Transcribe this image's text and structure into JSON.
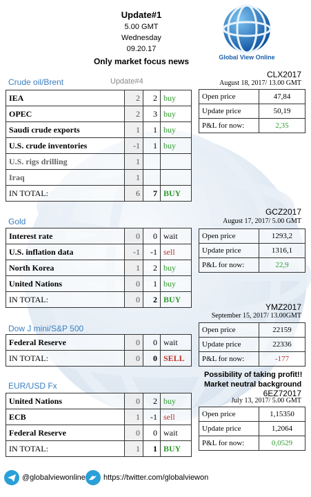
{
  "header": {
    "title": "Update#1",
    "time": "5.00 GMT",
    "day": "Wednesday",
    "date": "09.20.17",
    "subtitle": "Only market focus news",
    "logo_text": "Global View Online"
  },
  "sections": [
    {
      "name": "Crude oil/Brent",
      "update": "Update#4",
      "rows": [
        {
          "label": "IEA",
          "prev": "2",
          "cur": "2",
          "signal": "buy",
          "signal_color": "#2e9a2e"
        },
        {
          "label": "OPEC",
          "prev": "2",
          "cur": "3",
          "signal": "buy",
          "signal_color": "#2e9a2e"
        },
        {
          "label": "Saudi crude exports",
          "prev": "1",
          "cur": "1",
          "signal": "buy",
          "signal_color": "#2e9a2e"
        },
        {
          "label": "U.S. crude inventories",
          "prev": "-1",
          "cur": "1",
          "signal": "buy",
          "signal_color": "#2e9a2e"
        },
        {
          "label": "U.S. rigs drilling",
          "prev": "1",
          "muted": true
        },
        {
          "label": "Iraq",
          "prev": "1",
          "muted": true
        }
      ],
      "total": {
        "label": "IN TOTAL:",
        "prev": "6",
        "cur": "7",
        "signal": "BUY",
        "signal_color": "#2e9a2e"
      },
      "contract": {
        "code": "CLX2017",
        "date": "August 18, 2017/ 13.00 GMT",
        "rows": [
          {
            "label": "Open price",
            "value": "47,84"
          },
          {
            "label": "Update price",
            "value": "50,19"
          },
          {
            "label": "P&L for now:",
            "value": "2,35",
            "color": "#2e9a2e"
          }
        ]
      }
    },
    {
      "name": "Gold",
      "rows": [
        {
          "label": "Interest rate",
          "prev": "0",
          "cur": "0",
          "signal": "wait",
          "signal_color": "#111"
        },
        {
          "label": "U.S. inflation data",
          "prev": "-1",
          "cur": "-1",
          "signal": "sell",
          "signal_color": "#c0302a"
        },
        {
          "label": "North Korea",
          "prev": "1",
          "cur": "2",
          "signal": "buy",
          "signal_color": "#2e9a2e"
        },
        {
          "label": "United Nations",
          "prev": "0",
          "cur": "1",
          "signal": "buy",
          "signal_color": "#2e9a2e"
        }
      ],
      "total": {
        "label": "IN TOTAL:",
        "prev": "0",
        "cur": "2",
        "signal": "BUY",
        "signal_color": "#2e9a2e"
      },
      "contract": {
        "code": "GCZ2017",
        "date": "August 17, 2017/ 5.00 GMT",
        "rows": [
          {
            "label": "Open price",
            "value": "1293,2"
          },
          {
            "label": "Update price",
            "value": "1316,1"
          },
          {
            "label": "P&L for now:",
            "value": "22,9",
            "color": "#2e9a2e"
          }
        ]
      }
    },
    {
      "name": "Dow J mini/S&P 500",
      "rows": [
        {
          "label": "Federal Reserve",
          "prev": "0",
          "cur": "0",
          "signal": "wait",
          "signal_color": "#111"
        }
      ],
      "total": {
        "label": "IN TOTAL:",
        "prev": "0",
        "cur": "0",
        "signal": "SELL",
        "signal_color": "#c0302a"
      },
      "contract": {
        "code": "YMZ2017",
        "date": "September 15, 2017/ 13.00GMT",
        "rows": [
          {
            "label": "Open price",
            "value": "22159"
          },
          {
            "label": "Update price",
            "value": "22336"
          },
          {
            "label": "P&L for now:",
            "value": "-177",
            "color": "#c0302a"
          }
        ]
      },
      "notes": [
        "Possibility of taking profit!!",
        "Market neutral background"
      ]
    },
    {
      "name": "EUR/USD Fx",
      "rows": [
        {
          "label": "United Nations",
          "prev": "0",
          "cur": "2",
          "signal": "buy",
          "signal_color": "#2e9a2e"
        },
        {
          "label": "ECB",
          "prev": "1",
          "cur": "-1",
          "signal": "sell",
          "signal_color": "#c0302a"
        },
        {
          "label": "Federal Reserve",
          "prev": "0",
          "cur": "0",
          "signal": "wait",
          "signal_color": "#111"
        }
      ],
      "total": {
        "label": "IN TOTAL:",
        "prev": "1",
        "cur": "1",
        "signal": "BUY",
        "signal_color": "#2e9a2e"
      },
      "contract": {
        "code": "6EZ72017",
        "date": "July 13, 2017/ 5.00 GMT",
        "rows": [
          {
            "label": "Open price",
            "value": "1,15350"
          },
          {
            "label": "Update price",
            "value": "1,2064"
          },
          {
            "label": "P&L for now:",
            "value": "0,0529",
            "color": "#2e9a2e"
          }
        ]
      }
    }
  ],
  "footer": {
    "telegram": "@globalviewonline",
    "twitter": "https://twitter.com/globalviewon"
  }
}
